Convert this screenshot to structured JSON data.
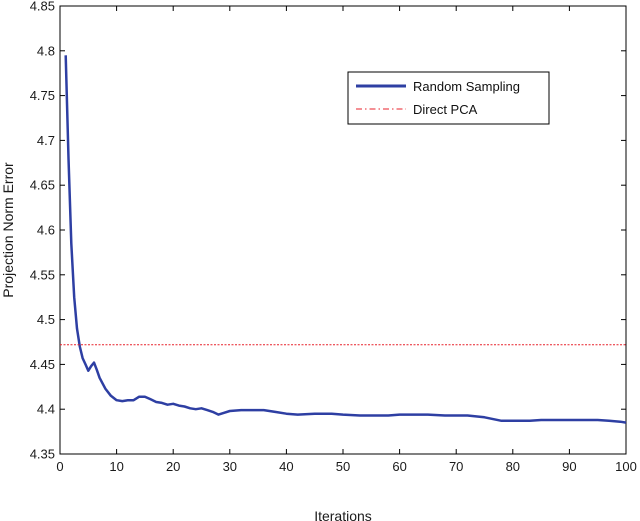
{
  "chart_data": {
    "type": "line",
    "title": "",
    "xlabel": "Iterations",
    "ylabel": "Projection Norm Error",
    "xlim": [
      0,
      100
    ],
    "ylim": [
      4.35,
      4.85
    ],
    "x_ticks": [
      0,
      10,
      20,
      30,
      40,
      50,
      60,
      70,
      80,
      90,
      100
    ],
    "x_tick_labels": [
      "0",
      "10",
      "20",
      "30",
      "40",
      "50",
      "60",
      "70",
      "80",
      "90",
      "100"
    ],
    "y_ticks": [
      4.35,
      4.4,
      4.45,
      4.5,
      4.55,
      4.6,
      4.65,
      4.7,
      4.75,
      4.8,
      4.85
    ],
    "y_tick_labels": [
      "4.35",
      "4.4",
      "4.45",
      "4.5",
      "4.55",
      "4.6",
      "4.65",
      "4.7",
      "4.75",
      "4.8",
      "4.85"
    ],
    "grid": false,
    "legend_position": "top-right",
    "series": [
      {
        "name": "Random Sampling",
        "style": "solid",
        "color": "#2e3fa3",
        "x": [
          1,
          1.5,
          2,
          2.5,
          3,
          3.5,
          4,
          4.5,
          5,
          5.5,
          6,
          6.5,
          7,
          8,
          9,
          10,
          11,
          12,
          13,
          14,
          15,
          16,
          17,
          18,
          19,
          20,
          21,
          22,
          23,
          24,
          25,
          26,
          27,
          28,
          29,
          30,
          32,
          34,
          36,
          38,
          40,
          42,
          45,
          48,
          50,
          53,
          55,
          58,
          60,
          63,
          65,
          68,
          70,
          72,
          75,
          78,
          80,
          83,
          85,
          88,
          90,
          93,
          95,
          97,
          99,
          100
        ],
        "y": [
          4.795,
          4.68,
          4.585,
          4.525,
          4.49,
          4.47,
          4.457,
          4.45,
          4.443,
          4.448,
          4.452,
          4.444,
          4.435,
          4.423,
          4.415,
          4.41,
          4.409,
          4.41,
          4.41,
          4.414,
          4.414,
          4.411,
          4.408,
          4.407,
          4.405,
          4.406,
          4.404,
          4.403,
          4.401,
          4.4,
          4.401,
          4.399,
          4.397,
          4.394,
          4.396,
          4.398,
          4.399,
          4.399,
          4.399,
          4.397,
          4.395,
          4.394,
          4.395,
          4.395,
          4.394,
          4.393,
          4.393,
          4.393,
          4.394,
          4.394,
          4.394,
          4.393,
          4.393,
          4.393,
          4.391,
          4.387,
          4.387,
          4.387,
          4.388,
          4.388,
          4.388,
          4.388,
          4.388,
          4.387,
          4.386,
          4.385
        ]
      },
      {
        "name": "Direct PCA",
        "style": "dash-dot",
        "color": "#e8212b",
        "x": [
          0,
          100
        ],
        "y": [
          4.472,
          4.472
        ]
      }
    ]
  }
}
